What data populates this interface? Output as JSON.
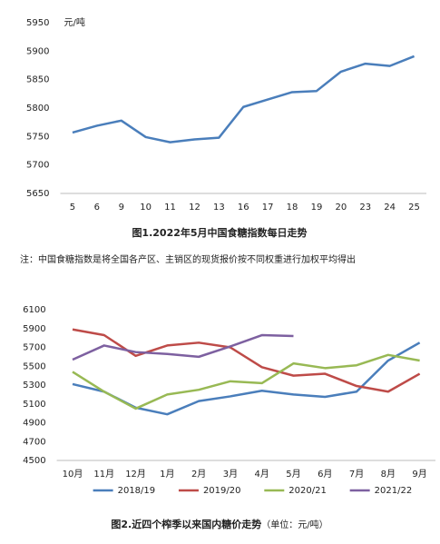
{
  "chart_data": [
    {
      "type": "line",
      "unit_label": "元/吨",
      "caption": "图1.2022年5月中国食糖指数每日走势",
      "categories": [
        "5",
        "6",
        "9",
        "10",
        "11",
        "12",
        "13",
        "16",
        "17",
        "18",
        "19",
        "20",
        "23",
        "24",
        "25"
      ],
      "series": [
        {
          "name": "中国食糖指数",
          "color": "#4a7ebb",
          "values": [
            5757,
            5769,
            5778,
            5749,
            5740,
            5745,
            5748,
            5802,
            5815,
            5828,
            5830,
            5864,
            5878,
            5874,
            5891
          ]
        }
      ],
      "ylim": [
        5650,
        5950
      ],
      "yticks": [
        5650,
        5700,
        5750,
        5800,
        5850,
        5900,
        5950
      ],
      "legend": false
    },
    {
      "type": "line",
      "caption": "图2.近四个榨季以来国内糖价走势",
      "caption_unit": "（单位：元/吨）",
      "categories": [
        "10月",
        "11月",
        "12月",
        "1月",
        "2月",
        "3月",
        "4月",
        "5月",
        "6月",
        "7月",
        "8月",
        "9月"
      ],
      "series": [
        {
          "name": "2018/19",
          "color": "#4a7ebb",
          "values": [
            5310,
            5230,
            5060,
            4990,
            5130,
            5180,
            5240,
            5200,
            5175,
            5230,
            5560,
            5750
          ]
        },
        {
          "name": "2019/20",
          "color": "#be4b48",
          "values": [
            5890,
            5830,
            5610,
            5720,
            5750,
            5700,
            5490,
            5400,
            5420,
            5290,
            5230,
            5420
          ]
        },
        {
          "name": "2020/21",
          "color": "#98b954",
          "values": [
            5440,
            5230,
            5050,
            5200,
            5250,
            5340,
            5320,
            5530,
            5480,
            5510,
            5620,
            5560
          ]
        },
        {
          "name": "2021/22",
          "color": "#7d60a0",
          "values": [
            5570,
            5720,
            5650,
            5630,
            5600,
            5710,
            5830,
            5820,
            null,
            null,
            null,
            null
          ]
        }
      ],
      "ylim": [
        4500,
        6100
      ],
      "yticks": [
        4500,
        4700,
        4900,
        5100,
        5300,
        5500,
        5700,
        5900,
        6100
      ],
      "legend": "bottom"
    }
  ],
  "note": "注：中国食糖指数是将全国各产区、主销区的现货报价按不同权重进行加权平均得出"
}
